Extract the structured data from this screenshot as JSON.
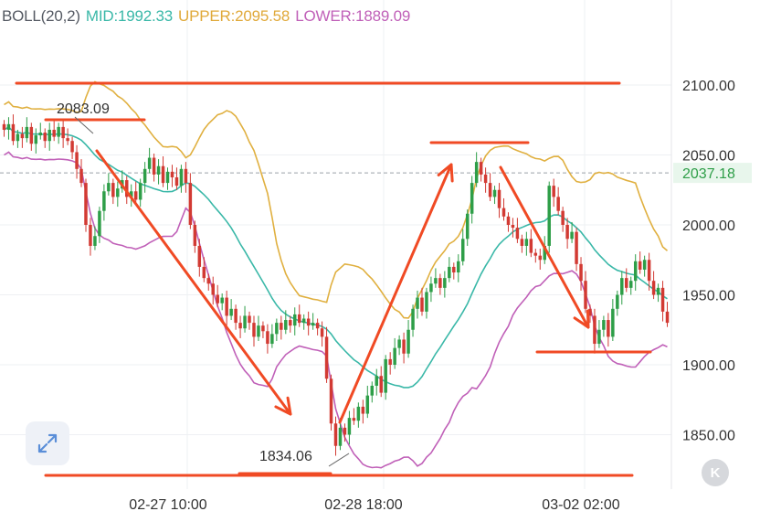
{
  "indicator": {
    "name": "BOLL(20,2)",
    "mid_label": "MID:",
    "mid_value": "1992.33",
    "upper_label": "UPPER:",
    "upper_value": "2095.58",
    "lower_label": "LOWER:",
    "lower_value": "1889.09"
  },
  "colors": {
    "mid": "#3ab8a8",
    "upper": "#e0b040",
    "lower": "#c060b8",
    "up_candle": "#2e9e48",
    "down_candle": "#d23a33",
    "annotation": "#f04a24",
    "price_tag_bg": "#e8f6ec",
    "price_tag_text": "#2e9e48"
  },
  "buttons": {
    "expand_icon": "expand-arrows-icon",
    "k_label": "K"
  },
  "chart_data": {
    "type": "candlestick",
    "y_axis": {
      "ticks": [
        "2100.00",
        "2050.00",
        "2000.00",
        "1950.00",
        "1900.00",
        "1850.00"
      ],
      "tick_values": [
        2100,
        2050,
        2000,
        1950,
        1900,
        1850
      ]
    },
    "x_axis": {
      "tick_labels": [
        "02-27 10:00",
        "02-28 18:00",
        "03-02 02:00"
      ]
    },
    "current_price": "2037.18",
    "max_label": "2083.09",
    "min_label": "1834.06",
    "close_series": [
      2068,
      2072,
      2060,
      2065,
      2062,
      2070,
      2058,
      2064,
      2066,
      2060,
      2068,
      2063,
      2070,
      2062,
      2060,
      2052,
      2040,
      2030,
      2000,
      1985,
      1992,
      2010,
      2024,
      2030,
      2020,
      2026,
      2032,
      2020,
      2024,
      2018,
      2030,
      2040,
      2048,
      2036,
      2042,
      2030,
      2038,
      2034,
      2028,
      2040,
      2030,
      2000,
      1985,
      1970,
      1962,
      1958,
      1950,
      1944,
      1948,
      1935,
      1940,
      1930,
      1926,
      1935,
      1930,
      1920,
      1928,
      1924,
      1915,
      1922,
      1930,
      1925,
      1932,
      1928,
      1936,
      1930,
      1933,
      1928,
      1930,
      1926,
      1920,
      1890,
      1858,
      1842,
      1855,
      1850,
      1862,
      1860,
      1870,
      1865,
      1878,
      1885,
      1892,
      1880,
      1904,
      1900,
      1912,
      1918,
      1908,
      1925,
      1940,
      1948,
      1938,
      1952,
      1958,
      1962,
      1955,
      1962,
      1970,
      1966,
      1974,
      1990,
      2008,
      2030,
      2045,
      2036,
      2030,
      2020,
      2025,
      2012,
      2006,
      2000,
      1998,
      1990,
      1985,
      1990,
      1980,
      1978,
      1975,
      1985,
      2028,
      2020,
      2010,
      2000,
      1990,
      1995,
      1972,
      1960,
      1940,
      1935,
      1915,
      1925,
      1932,
      1920,
      1940,
      1950,
      1962,
      1955,
      1960,
      1974,
      1968,
      1975,
      1960,
      1950,
      1955,
      1938,
      1930
    ]
  }
}
